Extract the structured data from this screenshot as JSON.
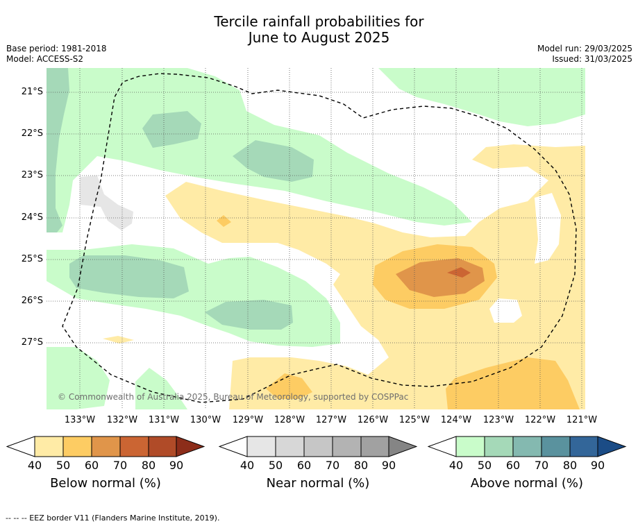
{
  "title_line1": "Tercile rainfall probabilities for",
  "title_line2": "June to August 2025",
  "base_period": "Base period: 1981-2018",
  "model": "Model: ACCESS-S2",
  "model_run": "Model run: 29/03/2025",
  "issued": "Issued: 31/03/2025",
  "copyright": "© Commonwealth of Australia 2025, Bureau of Meteorology, supported by COSPPac",
  "map": {
    "lon_labels": [
      "133°W",
      "132°W",
      "131°W",
      "130°W",
      "129°W",
      "128°W",
      "127°W",
      "126°W",
      "125°W",
      "124°W",
      "123°W",
      "122°W",
      "121°W"
    ],
    "lat_labels": [
      "21°S",
      "22°S",
      "23°S",
      "24°S",
      "25°S",
      "26°S",
      "27°S"
    ]
  },
  "legends": [
    {
      "title": "Below normal (%)",
      "ticks": [
        "40",
        "50",
        "60",
        "70",
        "80",
        "90"
      ],
      "colors": [
        "#ffeba6",
        "#fdcc63",
        "#e0954a",
        "#cb6533",
        "#b04b28",
        "#8c2d1a"
      ]
    },
    {
      "title": "Near normal (%)",
      "ticks": [
        "40",
        "50",
        "60",
        "70",
        "80",
        "90"
      ],
      "colors": [
        "#e6e6e6",
        "#d7d7d7",
        "#c6c6c6",
        "#b3b3b3",
        "#a1a1a1",
        "#858585"
      ]
    },
    {
      "title": "Above normal (%)",
      "ticks": [
        "40",
        "50",
        "60",
        "70",
        "80",
        "90"
      ],
      "colors": [
        "#c9fcca",
        "#a5d9b8",
        "#84b9b0",
        "#5a929e",
        "#336699",
        "#1b4c86"
      ]
    }
  ],
  "footer": "--  --  -- EEZ border V11 (Flanders Marine Institute, 2019)."
}
